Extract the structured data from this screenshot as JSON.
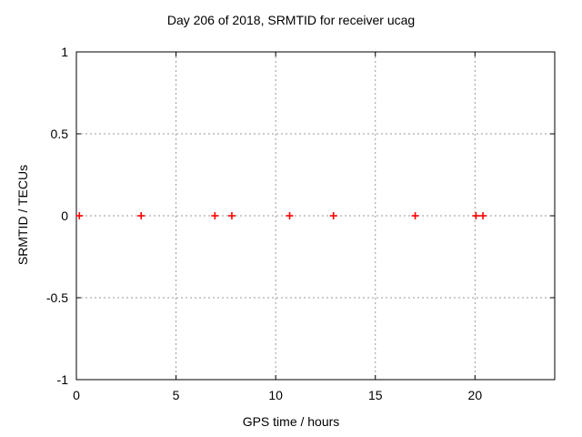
{
  "chart_data": {
    "type": "scatter",
    "title": "Day 206 of 2018, SRMTID for receiver ucag",
    "xlabel": "GPS time / hours",
    "ylabel": "SRMTID / TECUs",
    "xlim": [
      0,
      24
    ],
    "ylim": [
      -1,
      1
    ],
    "xticks": [
      {
        "value": 0,
        "label": "0"
      },
      {
        "value": 5,
        "label": "5"
      },
      {
        "value": 10,
        "label": "10"
      },
      {
        "value": 15,
        "label": "15"
      },
      {
        "value": 20,
        "label": "20"
      }
    ],
    "yticks": [
      {
        "value": 1,
        "label": "1"
      },
      {
        "value": 0.5,
        "label": "0.5"
      },
      {
        "value": 0,
        "label": "0"
      },
      {
        "value": -0.5,
        "label": "-0.5"
      },
      {
        "value": -1,
        "label": "-1"
      }
    ],
    "grid": true,
    "legend_position": "none",
    "marker": {
      "shape": "plus",
      "color": "#ff0000",
      "size": 9
    },
    "series": [
      {
        "name": "SRMTID",
        "color": "#ff0000",
        "points": [
          {
            "x": 0.15,
            "y": 0
          },
          {
            "x": 3.25,
            "y": 0
          },
          {
            "x": 6.95,
            "y": 0
          },
          {
            "x": 7.8,
            "y": 0
          },
          {
            "x": 10.7,
            "y": 0
          },
          {
            "x": 12.9,
            "y": 0
          },
          {
            "x": 17.0,
            "y": 0
          },
          {
            "x": 20.05,
            "y": 0
          },
          {
            "x": 20.4,
            "y": 0
          }
        ]
      }
    ]
  },
  "colors": {
    "background": "#ffffff",
    "border": "#000000",
    "grid": "#9a9a9a",
    "text": "#000000",
    "marker": "#ff0000"
  }
}
